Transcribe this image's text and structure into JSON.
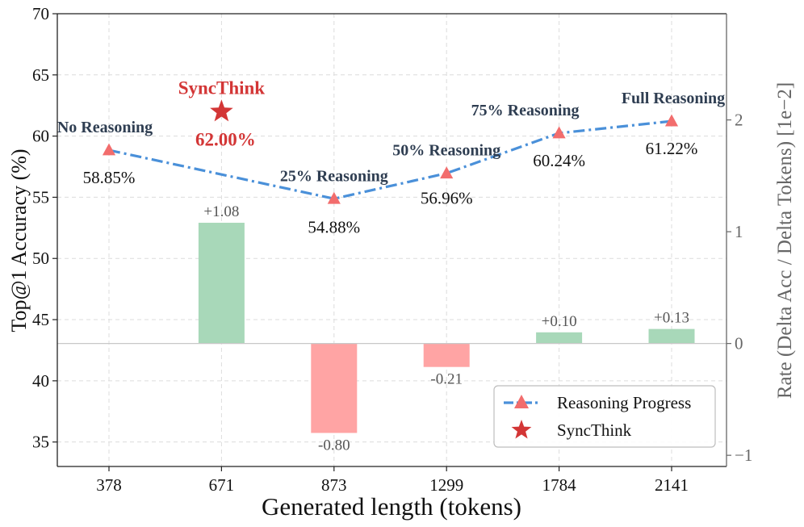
{
  "chart_data": {
    "type": "bar+line",
    "xlabel": "Generated length (tokens)",
    "ylabel_left": "Top@1 Accuracy (%)",
    "ylabel_right": "Rate (Delta Acc / Delta Tokens) [1e−2]",
    "categories": [
      "378",
      "671",
      "873",
      "1299",
      "1784",
      "2141"
    ],
    "ylim_left": [
      33,
      70
    ],
    "yticks_left": [
      35,
      40,
      45,
      50,
      55,
      60,
      65,
      70
    ],
    "ylim_right": [
      -1.1,
      2.95
    ],
    "yticks_right": [
      -1,
      0,
      1,
      2
    ],
    "line_series": {
      "name": "Reasoning Progress",
      "values": [
        58.85,
        54.88,
        56.96,
        60.24,
        61.22
      ],
      "category_index": [
        0,
        2,
        3,
        4,
        5
      ],
      "value_labels": [
        "58.85%",
        "54.88%",
        "56.96%",
        "60.24%",
        "61.22%"
      ],
      "stage_labels": [
        "No Reasoning",
        "25% Reasoning",
        "50% Reasoning",
        "75% Reasoning",
        "Full Reasoning"
      ],
      "color": "#4a90d9",
      "marker_color": "#f26d6d"
    },
    "bar_series": {
      "category_index": [
        1,
        2,
        3,
        4,
        5
      ],
      "values": [
        1.08,
        -0.8,
        -0.21,
        0.1,
        0.13
      ],
      "labels": [
        "+1.08",
        "-0.80",
        "-0.21",
        "+0.10",
        "+0.13"
      ],
      "positive_color": "#a8d8b9",
      "negative_color": "#ffa4a4"
    },
    "highlight": {
      "name": "SyncThink",
      "category_index": 1,
      "value": 62.0,
      "label": "SyncThink",
      "value_label": "62.00%",
      "color": "#d33636"
    },
    "legend": {
      "position": "bottom-right",
      "entries": [
        "Reasoning Progress",
        "SyncThink"
      ]
    }
  }
}
